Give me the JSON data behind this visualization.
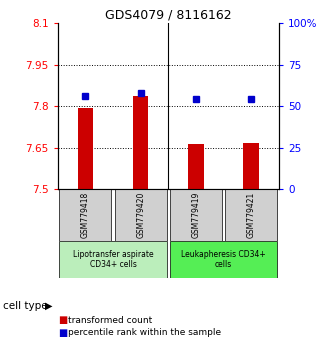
{
  "title": "GDS4079 / 8116162",
  "samples": [
    "GSM779418",
    "GSM779420",
    "GSM779419",
    "GSM779421"
  ],
  "transformed_counts": [
    7.795,
    7.835,
    7.665,
    7.668
  ],
  "percentile_ranks": [
    56,
    58,
    54,
    54
  ],
  "ylim_left": [
    7.5,
    8.1
  ],
  "ylim_right": [
    0,
    100
  ],
  "yticks_left": [
    7.5,
    7.65,
    7.8,
    7.95,
    8.1
  ],
  "ytick_labels_left": [
    "7.5",
    "7.65",
    "7.8",
    "7.95",
    "8.1"
  ],
  "yticks_right": [
    0,
    25,
    50,
    75,
    100
  ],
  "ytick_labels_right": [
    "0",
    "25",
    "50",
    "75",
    "100%"
  ],
  "hlines": [
    7.65,
    7.8,
    7.95
  ],
  "bar_color": "#cc0000",
  "dot_color": "#0000cc",
  "bar_width": 0.28,
  "groups": [
    {
      "label": "Lipotransfer aspirate\nCD34+ cells",
      "indices": [
        0,
        1
      ],
      "color": "#bbeebb"
    },
    {
      "label": "Leukapheresis CD34+\ncells",
      "indices": [
        2,
        3
      ],
      "color": "#55ee55"
    }
  ],
  "cell_type_label": "cell type",
  "legend_bar_label": "transformed count",
  "legend_dot_label": "percentile rank within the sample",
  "x_positions": [
    1,
    2,
    3,
    4
  ],
  "bar_bottom": 7.5,
  "bg_color": "#ffffff"
}
